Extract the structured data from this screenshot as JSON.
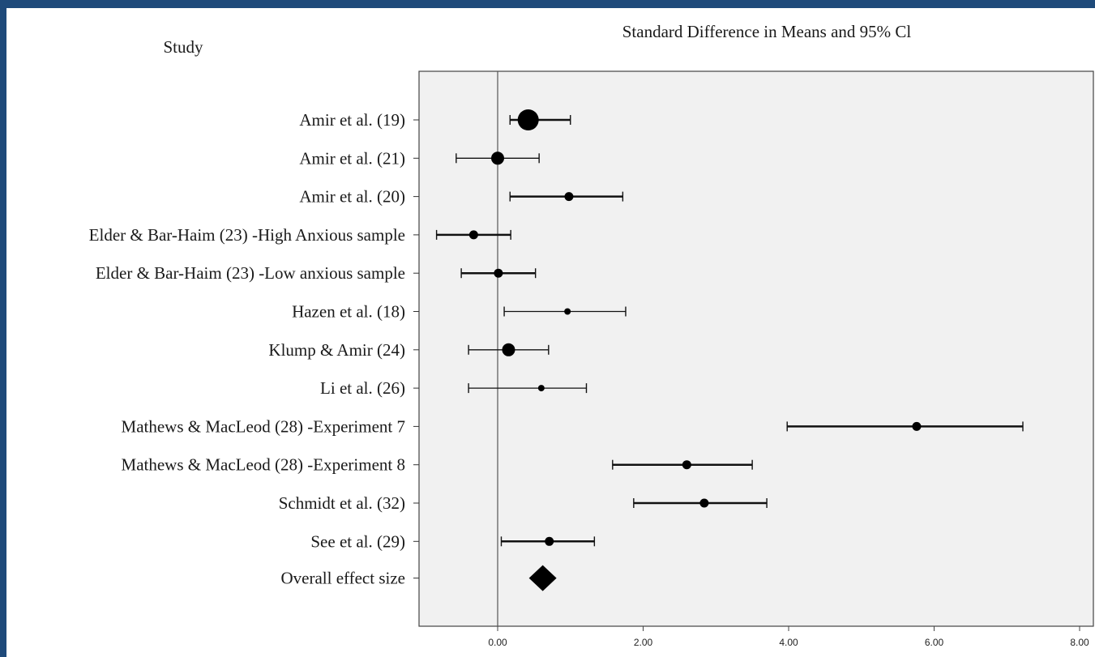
{
  "chart_data": {
    "type": "forest",
    "title": "Standard Difference in Means and 95% Cl",
    "row_header": "Study",
    "xlim": [
      -1.1,
      8.0
    ],
    "x_ticks": [
      {
        "value": 0,
        "label": "0.00"
      },
      {
        "value": 2,
        "label": "2.00"
      },
      {
        "value": 4,
        "label": "4.00"
      },
      {
        "value": 6,
        "label": "6.00"
      },
      {
        "value": 8,
        "label": "8.00"
      }
    ],
    "reference_line": 0,
    "grid": false,
    "studies": [
      {
        "label": "Amir et al. (19)",
        "estimate": 0.42,
        "ci_low": 0.17,
        "ci_high": 1.0,
        "weight": "large"
      },
      {
        "label": "Amir et al. (21)",
        "estimate": 0.0,
        "ci_low": -0.57,
        "ci_high": 0.57,
        "weight": "medium"
      },
      {
        "label": "Amir et al. (20)",
        "estimate": 0.98,
        "ci_low": 0.17,
        "ci_high": 1.72,
        "weight": "small"
      },
      {
        "label": "Elder & Bar-Haim (23) -High Anxious sample",
        "estimate": -0.33,
        "ci_low": -0.84,
        "ci_high": 0.18,
        "weight": "small"
      },
      {
        "label": "Elder & Bar-Haim (23) -Low anxious sample",
        "estimate": 0.01,
        "ci_low": -0.5,
        "ci_high": 0.52,
        "weight": "small"
      },
      {
        "label": "Hazen et al. (18)",
        "estimate": 0.96,
        "ci_low": 0.09,
        "ci_high": 1.76,
        "weight": "tiny"
      },
      {
        "label": "Klump & Amir (24)",
        "estimate": 0.15,
        "ci_low": -0.4,
        "ci_high": 0.7,
        "weight": "medium"
      },
      {
        "label": "Li et al. (26)",
        "estimate": 0.6,
        "ci_low": -0.4,
        "ci_high": 1.22,
        "weight": "tiny"
      },
      {
        "label": "Mathews & MacLeod  (28) -Experiment 7",
        "estimate": 5.76,
        "ci_low": 3.98,
        "ci_high": 7.22,
        "weight": "small"
      },
      {
        "label": "Mathews & MacLeod  (28) -Experiment 8",
        "estimate": 2.6,
        "ci_low": 1.58,
        "ci_high": 3.5,
        "weight": "small"
      },
      {
        "label": "Schmidt et al. (32)",
        "estimate": 2.84,
        "ci_low": 1.87,
        "ci_high": 3.7,
        "weight": "small"
      },
      {
        "label": "See et al. (29)",
        "estimate": 0.71,
        "ci_low": 0.05,
        "ci_high": 1.33,
        "weight": "small"
      }
    ],
    "overall": {
      "label": "Overall effect size",
      "estimate": 0.62
    }
  }
}
